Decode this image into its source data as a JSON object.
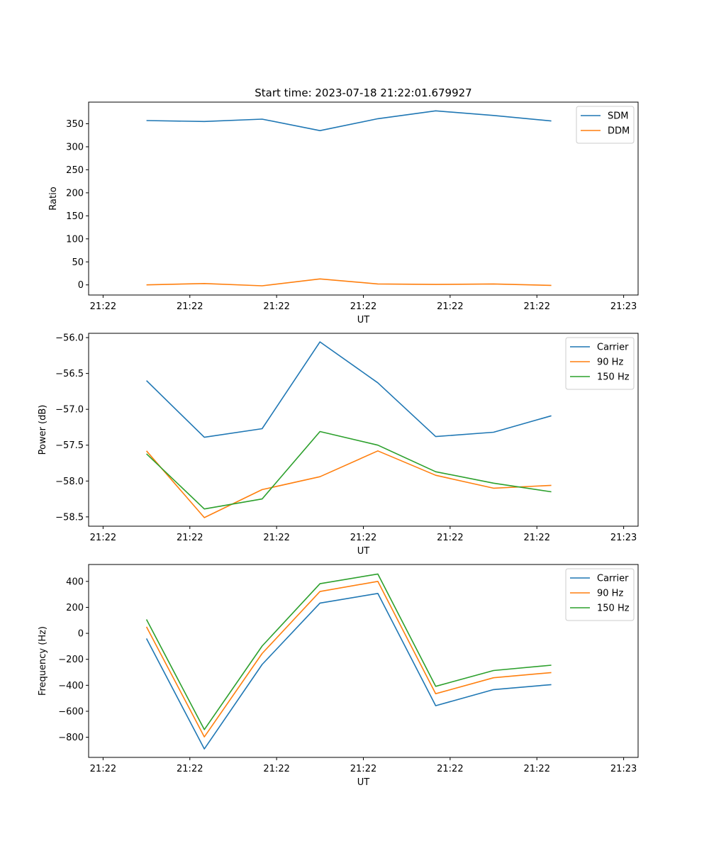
{
  "colors": {
    "c0": "#1f77b4",
    "c1": "#ff7f0e",
    "c2": "#2ca02c"
  },
  "chart_data": [
    {
      "type": "line",
      "title": "Start time: 2023-07-18 21:22:01.679927",
      "xlabel": "UT",
      "ylabel": "Ratio",
      "xlim": [
        0,
        9.5
      ],
      "ylim": [
        -22,
        397
      ],
      "x_ticks": [
        0.25,
        1.75,
        3.25,
        4.75,
        6.25,
        7.75,
        9.25
      ],
      "x_tick_labels": [
        "21:22",
        "21:22",
        "21:22",
        "21:22",
        "21:22",
        "21:22",
        "21:23"
      ],
      "y_ticks": [
        0,
        50,
        100,
        150,
        200,
        250,
        300,
        350
      ],
      "y_tick_labels": [
        "0",
        "50",
        "100",
        "150",
        "200",
        "250",
        "300",
        "350"
      ],
      "x": [
        1,
        2,
        3,
        4,
        5,
        6,
        7,
        8
      ],
      "legend": "upper right",
      "series": [
        {
          "name": "SDM",
          "color": "#1f77b4",
          "values": [
            357,
            355,
            360,
            335,
            361,
            378,
            368,
            356
          ]
        },
        {
          "name": "DDM",
          "color": "#ff7f0e",
          "values": [
            0,
            3,
            -2,
            13,
            2,
            1,
            2,
            -1
          ]
        }
      ]
    },
    {
      "type": "line",
      "title": "",
      "xlabel": "UT",
      "ylabel": "Power (dB)",
      "xlim": [
        0,
        9.5
      ],
      "ylim": [
        -58.63,
        -55.94
      ],
      "x_ticks": [
        0.25,
        1.75,
        3.25,
        4.75,
        6.25,
        7.75,
        9.25
      ],
      "x_tick_labels": [
        "21:22",
        "21:22",
        "21:22",
        "21:22",
        "21:22",
        "21:22",
        "21:23"
      ],
      "y_ticks": [
        -58.5,
        -58.0,
        -57.5,
        -57.0,
        -56.5,
        -56.0
      ],
      "y_tick_labels": [
        "−58.5",
        "−58.0",
        "−57.5",
        "−57.0",
        "−56.5",
        "−56.0"
      ],
      "x": [
        1,
        2,
        3,
        4,
        5,
        6,
        7,
        8
      ],
      "legend": "upper right",
      "series": [
        {
          "name": "Carrier",
          "color": "#1f77b4",
          "values": [
            -56.6,
            -57.39,
            -57.27,
            -56.06,
            -56.63,
            -57.38,
            -57.32,
            -57.09
          ]
        },
        {
          "name": "90 Hz",
          "color": "#ff7f0e",
          "values": [
            -57.58,
            -58.51,
            -58.12,
            -57.94,
            -57.58,
            -57.92,
            -58.1,
            -58.06
          ]
        },
        {
          "name": "150 Hz",
          "color": "#2ca02c",
          "values": [
            -57.62,
            -58.39,
            -58.25,
            -57.31,
            -57.5,
            -57.87,
            -58.03,
            -58.15
          ]
        }
      ]
    },
    {
      "type": "line",
      "title": "",
      "xlabel": "UT",
      "ylabel": "Frequency (Hz)",
      "xlim": [
        0,
        9.5
      ],
      "ylim": [
        -955,
        530
      ],
      "x_ticks": [
        0.25,
        1.75,
        3.25,
        4.75,
        6.25,
        7.75,
        9.25
      ],
      "x_tick_labels": [
        "21:22",
        "21:22",
        "21:22",
        "21:22",
        "21:22",
        "21:22",
        "21:23"
      ],
      "y_ticks": [
        -800,
        -600,
        -400,
        -200,
        0,
        200,
        400
      ],
      "y_tick_labels": [
        "−800",
        "−600",
        "−400",
        "−200",
        "0",
        "200",
        "400"
      ],
      "x": [
        1,
        2,
        3,
        4,
        5,
        6,
        7,
        8
      ],
      "legend": "upper right",
      "series": [
        {
          "name": "Carrier",
          "color": "#1f77b4",
          "values": [
            -40,
            -890,
            -240,
            233,
            307,
            -557,
            -433,
            -395
          ]
        },
        {
          "name": "90 Hz",
          "color": "#ff7f0e",
          "values": [
            50,
            -797,
            -155,
            322,
            400,
            -465,
            -342,
            -302
          ]
        },
        {
          "name": "150 Hz",
          "color": "#2ca02c",
          "values": [
            107,
            -741,
            -98,
            382,
            457,
            -408,
            -286,
            -245
          ]
        }
      ]
    }
  ]
}
